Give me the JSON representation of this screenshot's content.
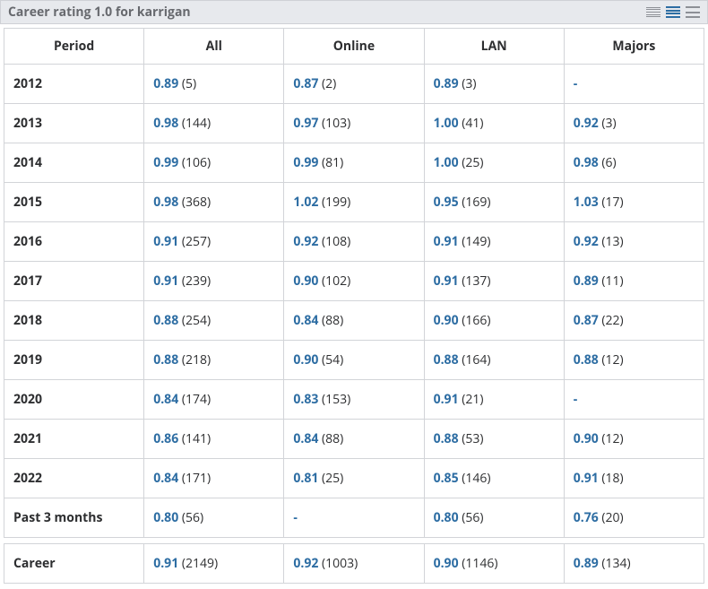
{
  "header": {
    "title": "Career rating 1.0 for karrigan"
  },
  "columns": [
    "Period",
    "All",
    "Online",
    "LAN",
    "Majors"
  ],
  "rows": [
    {
      "period": "2012",
      "cells": [
        {
          "rating": "0.89",
          "count": "5"
        },
        {
          "rating": "0.87",
          "count": "2"
        },
        {
          "rating": "0.89",
          "count": "3"
        },
        {
          "dash": true
        }
      ]
    },
    {
      "period": "2013",
      "cells": [
        {
          "rating": "0.98",
          "count": "144"
        },
        {
          "rating": "0.97",
          "count": "103"
        },
        {
          "rating": "1.00",
          "count": "41"
        },
        {
          "rating": "0.92",
          "count": "3"
        }
      ]
    },
    {
      "period": "2014",
      "cells": [
        {
          "rating": "0.99",
          "count": "106"
        },
        {
          "rating": "0.99",
          "count": "81"
        },
        {
          "rating": "1.00",
          "count": "25"
        },
        {
          "rating": "0.98",
          "count": "6"
        }
      ]
    },
    {
      "period": "2015",
      "cells": [
        {
          "rating": "0.98",
          "count": "368"
        },
        {
          "rating": "1.02",
          "count": "199"
        },
        {
          "rating": "0.95",
          "count": "169"
        },
        {
          "rating": "1.03",
          "count": "17"
        }
      ]
    },
    {
      "period": "2016",
      "cells": [
        {
          "rating": "0.91",
          "count": "257"
        },
        {
          "rating": "0.92",
          "count": "108"
        },
        {
          "rating": "0.91",
          "count": "149"
        },
        {
          "rating": "0.92",
          "count": "13"
        }
      ]
    },
    {
      "period": "2017",
      "cells": [
        {
          "rating": "0.91",
          "count": "239"
        },
        {
          "rating": "0.90",
          "count": "102"
        },
        {
          "rating": "0.91",
          "count": "137"
        },
        {
          "rating": "0.89",
          "count": "11"
        }
      ]
    },
    {
      "period": "2018",
      "cells": [
        {
          "rating": "0.88",
          "count": "254"
        },
        {
          "rating": "0.84",
          "count": "88"
        },
        {
          "rating": "0.90",
          "count": "166"
        },
        {
          "rating": "0.87",
          "count": "22"
        }
      ]
    },
    {
      "period": "2019",
      "cells": [
        {
          "rating": "0.88",
          "count": "218"
        },
        {
          "rating": "0.90",
          "count": "54"
        },
        {
          "rating": "0.88",
          "count": "164"
        },
        {
          "rating": "0.88",
          "count": "12"
        }
      ]
    },
    {
      "period": "2020",
      "cells": [
        {
          "rating": "0.84",
          "count": "174"
        },
        {
          "rating": "0.83",
          "count": "153"
        },
        {
          "rating": "0.91",
          "count": "21"
        },
        {
          "dash": true
        }
      ]
    },
    {
      "period": "2021",
      "cells": [
        {
          "rating": "0.86",
          "count": "141"
        },
        {
          "rating": "0.84",
          "count": "88"
        },
        {
          "rating": "0.88",
          "count": "53"
        },
        {
          "rating": "0.90",
          "count": "12"
        }
      ]
    },
    {
      "period": "2022",
      "cells": [
        {
          "rating": "0.84",
          "count": "171"
        },
        {
          "rating": "0.81",
          "count": "25"
        },
        {
          "rating": "0.85",
          "count": "146"
        },
        {
          "rating": "0.91",
          "count": "18"
        }
      ]
    },
    {
      "period": "Past 3 months",
      "cells": [
        {
          "rating": "0.80",
          "count": "56"
        },
        {
          "dash": true
        },
        {
          "rating": "0.80",
          "count": "56"
        },
        {
          "rating": "0.76",
          "count": "20"
        }
      ]
    }
  ],
  "career": {
    "period": "Career",
    "cells": [
      {
        "rating": "0.91",
        "count": "2149"
      },
      {
        "rating": "0.92",
        "count": "1003"
      },
      {
        "rating": "0.90",
        "count": "1146"
      },
      {
        "rating": "0.89",
        "count": "134"
      }
    ]
  },
  "colors": {
    "link": "#2d6da3",
    "header_bg": "#e7e9ed",
    "border": "#d2d4d8",
    "title_text": "#67696e"
  }
}
